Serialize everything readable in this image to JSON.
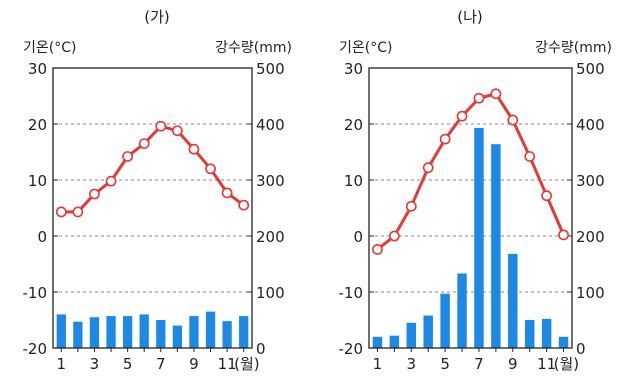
{
  "chart_data": [
    {
      "type": "climograph",
      "title": "(가)",
      "left_axis_label": "기온(°C)",
      "right_axis_label": "강수량(mm)",
      "x_suffix": "(월)",
      "months": [
        1,
        2,
        3,
        4,
        5,
        6,
        7,
        8,
        9,
        10,
        11,
        12
      ],
      "x_tick_labels": [
        "1",
        "3",
        "5",
        "7",
        "9",
        "11"
      ],
      "temp_ylim": [
        -20,
        30
      ],
      "temp_ticks": [
        "-20",
        "-10",
        "0",
        "10",
        "20",
        "30"
      ],
      "precip_ylim": [
        0,
        500
      ],
      "precip_ticks": [
        "0",
        "100",
        "200",
        "300",
        "400",
        "500"
      ],
      "grid": "dashed",
      "series": [
        {
          "kind": "line",
          "axis": "left",
          "values": [
            4.3,
            4.3,
            7.5,
            9.8,
            14.2,
            16.5,
            19.6,
            18.8,
            15.5,
            12.0,
            7.7,
            5.5
          ]
        },
        {
          "kind": "bar",
          "axis": "right",
          "values": [
            60,
            47,
            55,
            57,
            57,
            60,
            50,
            40,
            57,
            65,
            48,
            57
          ]
        }
      ],
      "colors": {
        "line": "#e53935",
        "bar": "#1e88e5",
        "grid": "#888888"
      }
    },
    {
      "type": "climograph",
      "title": "(나)",
      "left_axis_label": "기온(°C)",
      "right_axis_label": "강수량(mm)",
      "x_suffix": "(월)",
      "months": [
        1,
        2,
        3,
        4,
        5,
        6,
        7,
        8,
        9,
        10,
        11,
        12
      ],
      "x_tick_labels": [
        "1",
        "3",
        "5",
        "7",
        "9",
        "11"
      ],
      "temp_ylim": [
        -20,
        30
      ],
      "temp_ticks": [
        "-20",
        "-10",
        "0",
        "10",
        "20",
        "30"
      ],
      "precip_ylim": [
        0,
        500
      ],
      "precip_ticks": [
        "0",
        "100",
        "200",
        "300",
        "400",
        "500"
      ],
      "grid": "dashed",
      "series": [
        {
          "kind": "line",
          "axis": "left",
          "values": [
            -2.4,
            0.0,
            5.3,
            12.2,
            17.3,
            21.4,
            24.6,
            25.4,
            20.7,
            14.2,
            7.2,
            0.2
          ]
        },
        {
          "kind": "bar",
          "axis": "right",
          "values": [
            20,
            22,
            45,
            58,
            97,
            133,
            393,
            364,
            168,
            50,
            52,
            20
          ]
        }
      ],
      "colors": {
        "line": "#e53935",
        "bar": "#1e88e5",
        "grid": "#888888"
      }
    }
  ]
}
